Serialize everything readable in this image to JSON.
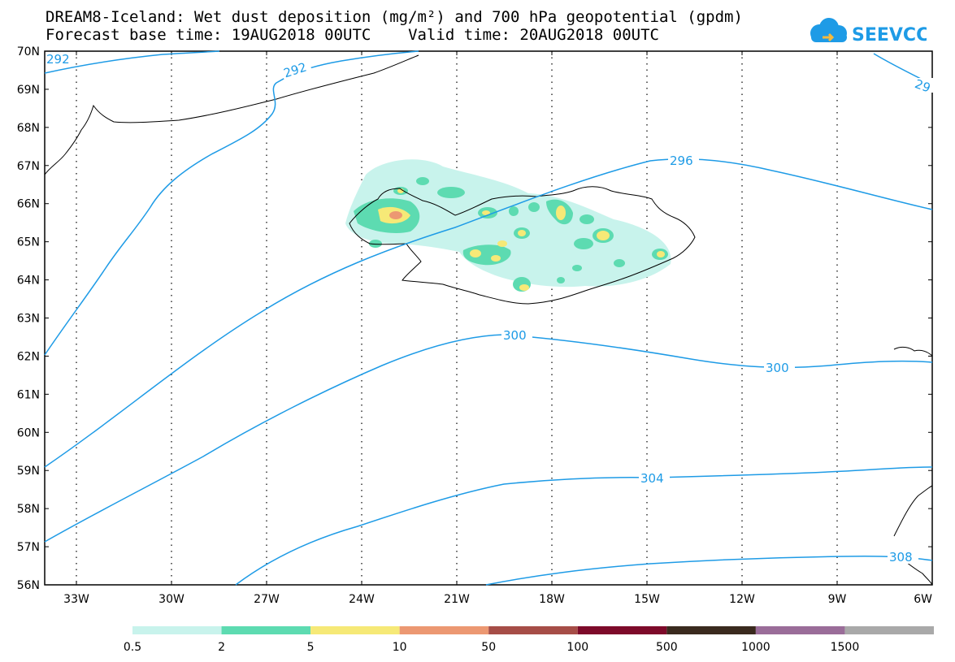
{
  "title": {
    "line1": "DREAM8-Iceland: Wet dust deposition (mg/m²) and 700 hPa geopotential (gpdm)",
    "line2": "Forecast base time: 19AUG2018 00UTC    Valid time: 20AUG2018 00UTC"
  },
  "logo": {
    "text": "SEEVCCC",
    "color": "#1e9be6"
  },
  "map": {
    "lat_labels": [
      "70N",
      "69N",
      "68N",
      "67N",
      "66N",
      "65N",
      "64N",
      "63N",
      "62N",
      "61N",
      "60N",
      "59N",
      "58N",
      "57N",
      "56N"
    ],
    "lon_labels": [
      "33W",
      "30W",
      "27W",
      "24W",
      "21W",
      "18W",
      "15W",
      "12W",
      "9W",
      "6W"
    ],
    "contour_color": "#1e9be6",
    "contour_labels": [
      "292",
      "292",
      "296",
      "29",
      "300",
      "300",
      "304",
      "308"
    ]
  },
  "colorbar": {
    "colors": [
      "#c8f3ec",
      "#5ddbb1",
      "#f6e977",
      "#ec9872",
      "#a64d47",
      "#7d0a2a",
      "#3a2a1e",
      "#9a6d99",
      "#a9a9a9"
    ],
    "labels": [
      "0.5",
      "2",
      "5",
      "10",
      "50",
      "100",
      "500",
      "1000",
      "1500"
    ]
  }
}
